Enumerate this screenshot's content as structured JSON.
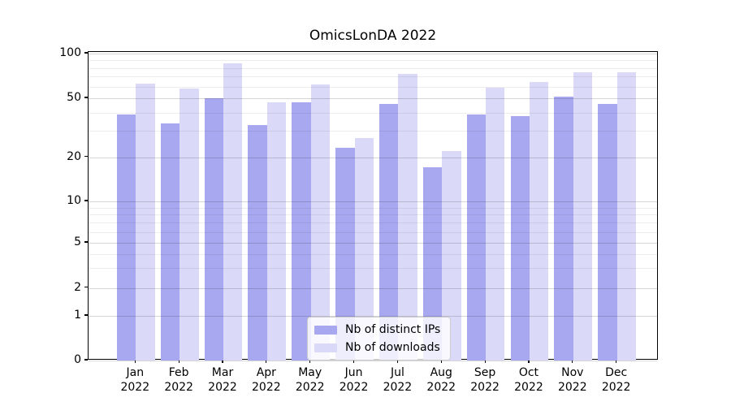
{
  "chart_data": {
    "type": "bar",
    "title": "OmicsLonDA 2022",
    "months": [
      "Jan",
      "Feb",
      "Mar",
      "Apr",
      "May",
      "Jun",
      "Jul",
      "Aug",
      "Sep",
      "Oct",
      "Nov",
      "Dec"
    ],
    "year": "2022",
    "series": [
      {
        "name": "Nb of distinct IPs",
        "color": "#a8a8f0",
        "values": [
          39,
          34,
          50,
          33,
          47,
          23,
          46,
          17,
          39,
          38,
          51,
          46
        ]
      },
      {
        "name": "Nb of downloads",
        "color": "#dadaf8",
        "values": [
          63,
          58,
          86,
          47,
          62,
          27,
          73,
          22,
          59,
          64,
          75,
          75
        ]
      }
    ],
    "yscale": "symlog",
    "ylim": [
      0,
      100
    ],
    "yticks": [
      100,
      50,
      20,
      10,
      5,
      2,
      1,
      0
    ],
    "ytick_labels": [
      "100",
      "50",
      "20",
      "10",
      "5",
      "2",
      "1",
      "0"
    ],
    "xlabel": "",
    "ylabel": "",
    "legend_position": "lower center",
    "grid": true
  }
}
